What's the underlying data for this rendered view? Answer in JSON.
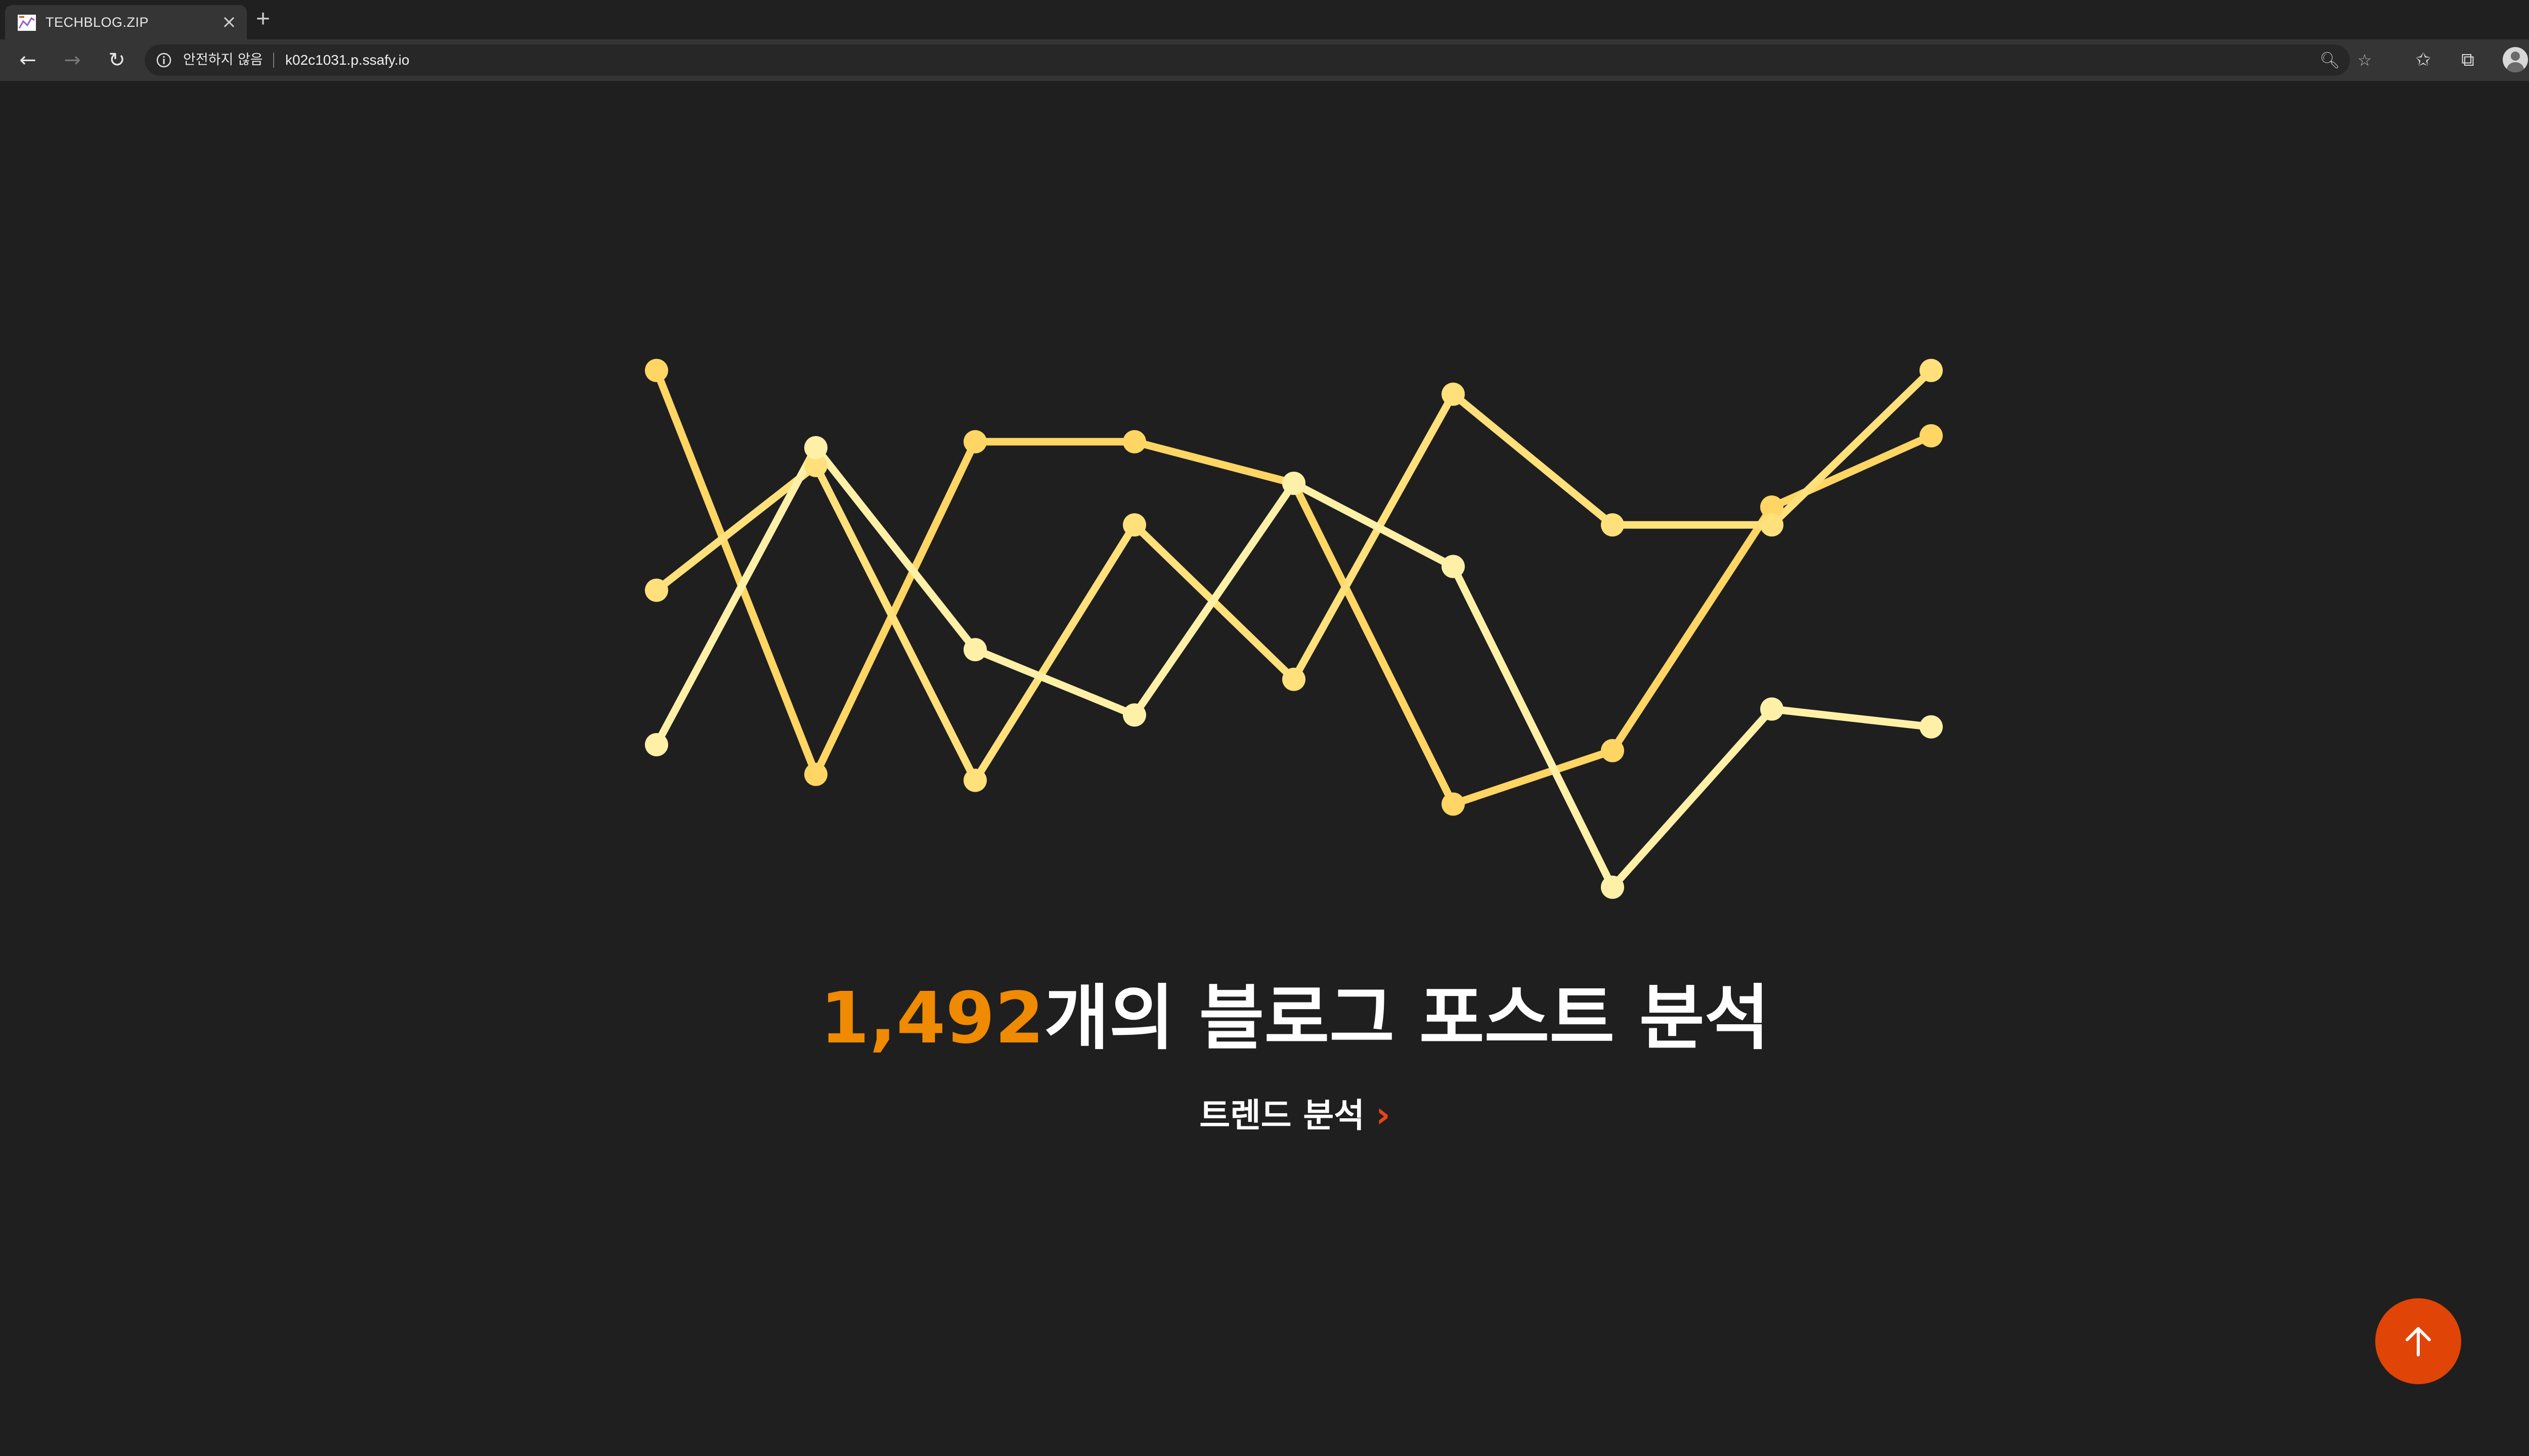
{
  "browser": {
    "tab": {
      "title": "TECHBLOG.ZIP",
      "close_glyph": "×",
      "favicon": "chart-favicon-icon"
    },
    "new_tab_glyph": "+",
    "nav": {
      "back_glyph": "←",
      "forward_glyph": "→",
      "reload_glyph": "↻"
    },
    "address_bar": {
      "security_text": "안전하지 않음",
      "url": "k02c1031.p.ssafy.io"
    },
    "toolbar_glyphs": {
      "zoom": "🔍︎",
      "favorite": "☆",
      "favorites": "✩",
      "collections": "⧉",
      "more": "···"
    }
  },
  "page": {
    "headline_count": "1,492",
    "headline_text": "개의 블로그 포스트 분석",
    "trend_link": "트렌드 분석",
    "trend_chevron": "›",
    "scroll_top_icon": "arrow-up-icon",
    "colors": {
      "accent": "#f08a00",
      "scroll_button": "#e04406",
      "chevron": "#e8451a",
      "background": "#1f1f1f"
    }
  },
  "chart_data": {
    "type": "line",
    "x": [
      1,
      2,
      3,
      4,
      5,
      6,
      7,
      8,
      9
    ],
    "ylim": [
      0,
      100
    ],
    "grid": false,
    "series": [
      {
        "color": "#ffd564",
        "values": [
          95,
          27,
          83,
          83,
          76,
          22,
          31,
          72,
          84
        ]
      },
      {
        "color": "#ffe07a",
        "values": [
          58,
          79,
          26,
          69,
          43,
          91,
          69,
          69,
          95
        ]
      },
      {
        "color": "#fff0a8",
        "values": [
          32,
          82,
          48,
          37,
          76,
          62,
          8,
          38,
          35
        ]
      }
    ]
  }
}
